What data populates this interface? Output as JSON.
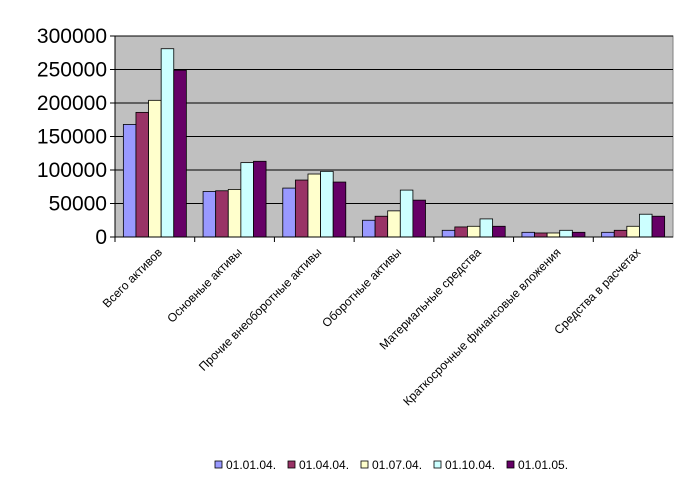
{
  "chart_data": {
    "type": "bar",
    "title": "",
    "xlabel": "",
    "ylabel": "",
    "ylim": [
      0,
      300000
    ],
    "yticks": [
      "0",
      "50000",
      "100000",
      "150000",
      "200000",
      "250000",
      "300000"
    ],
    "grid": true,
    "legend_position": "bottom",
    "categories": [
      "Всего активов",
      "Основные активы",
      "Прочие внеоборотные активы",
      "Оборотные активы",
      "Материальные средства",
      "Краткосрочные финансовые вложения",
      "Средства в расчетах"
    ],
    "series": [
      {
        "name": "01.01.04.",
        "color": "#9999ff",
        "values": [
          168000,
          68000,
          73000,
          25000,
          10000,
          7000,
          7000
        ]
      },
      {
        "name": "01.04.04.",
        "color": "#993366",
        "values": [
          186000,
          69000,
          85000,
          31000,
          15000,
          6000,
          10000
        ]
      },
      {
        "name": "01.07.04.",
        "color": "#ffffcc",
        "values": [
          204000,
          71000,
          94000,
          39000,
          16000,
          6000,
          16000
        ]
      },
      {
        "name": "01.10.04.",
        "color": "#ccffff",
        "values": [
          281000,
          111000,
          98000,
          70000,
          27000,
          10000,
          34000
        ]
      },
      {
        "name": "01.01.05.",
        "color": "#660066",
        "values": [
          249000,
          113000,
          82000,
          55000,
          16000,
          7000,
          31000
        ]
      }
    ],
    "plot_background": "#c0c0c0"
  }
}
